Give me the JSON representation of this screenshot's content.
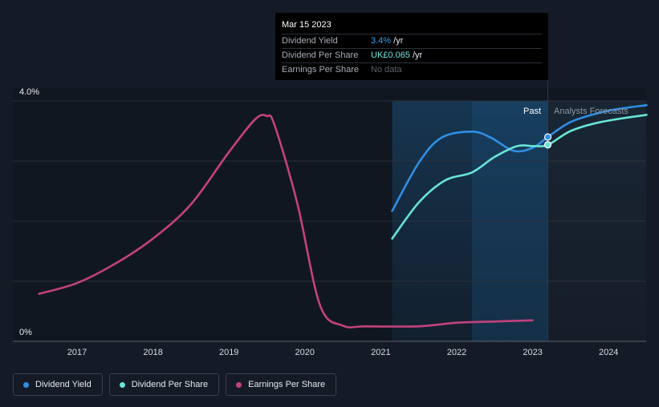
{
  "chart_data": {
    "type": "line",
    "y_axis": {
      "top_label": "4.0%",
      "bottom_label": "0%",
      "ylim": [
        0,
        4.0
      ],
      "unit": "%"
    },
    "x_axis": {
      "ticks": [
        "2017",
        "2018",
        "2019",
        "2020",
        "2021",
        "2022",
        "2023",
        "2024"
      ],
      "xlim": [
        2016.3,
        2024.5
      ]
    },
    "grid": true,
    "period_labels": {
      "past": "Past",
      "forecast": "Analysts Forecasts"
    },
    "past_end": 2023.2,
    "series": [
      {
        "name": "Dividend Yield",
        "color": "#2f8fe5",
        "points": [
          [
            2021.15,
            2.17
          ],
          [
            2021.5,
            2.97
          ],
          [
            2021.8,
            3.39
          ],
          [
            2022.2,
            3.49
          ],
          [
            2022.45,
            3.39
          ],
          [
            2022.75,
            3.17
          ],
          [
            2023.0,
            3.22
          ],
          [
            2023.2,
            3.4
          ],
          [
            2023.5,
            3.65
          ],
          [
            2023.9,
            3.81
          ],
          [
            2024.2,
            3.88
          ],
          [
            2024.5,
            3.93
          ]
        ]
      },
      {
        "name": "Dividend Per Share",
        "color": "#69e3d6",
        "points": [
          [
            2021.15,
            1.71
          ],
          [
            2021.5,
            2.31
          ],
          [
            2021.85,
            2.68
          ],
          [
            2022.2,
            2.81
          ],
          [
            2022.5,
            3.07
          ],
          [
            2022.8,
            3.25
          ],
          [
            2023.0,
            3.25
          ],
          [
            2023.2,
            3.27
          ],
          [
            2023.5,
            3.5
          ],
          [
            2023.9,
            3.65
          ],
          [
            2024.5,
            3.77
          ]
        ]
      },
      {
        "name": "Earnings Per Share",
        "color": "#c2427c",
        "points": [
          [
            2016.5,
            0.79
          ],
          [
            2017.0,
            0.97
          ],
          [
            2017.5,
            1.29
          ],
          [
            2018.0,
            1.71
          ],
          [
            2018.5,
            2.28
          ],
          [
            2019.0,
            3.15
          ],
          [
            2019.35,
            3.7
          ],
          [
            2019.5,
            3.75
          ],
          [
            2019.6,
            3.6
          ],
          [
            2019.9,
            2.3
          ],
          [
            2020.2,
            0.6
          ],
          [
            2020.5,
            0.26
          ],
          [
            2020.8,
            0.25
          ],
          [
            2021.5,
            0.25
          ],
          [
            2022.0,
            0.31
          ],
          [
            2022.5,
            0.33
          ],
          [
            2023.0,
            0.35
          ]
        ]
      }
    ],
    "highlight_markers": [
      {
        "series": "Dividend Yield",
        "x": 2023.2,
        "y": 3.4
      },
      {
        "series": "Dividend Per Share",
        "x": 2023.2,
        "y": 3.27
      }
    ]
  },
  "tooltip": {
    "date": "Mar 15 2023",
    "rows": [
      {
        "key": "Dividend Yield",
        "value": "3.4%",
        "suffix": " /yr"
      },
      {
        "key": "Dividend Per Share",
        "value": "UK£0.065",
        "suffix": " /yr"
      },
      {
        "key": "Earnings Per Share",
        "value": "No data",
        "suffix": ""
      }
    ]
  },
  "legend": [
    {
      "label": "Dividend Yield",
      "color": "#2f8fe5"
    },
    {
      "label": "Dividend Per Share",
      "color": "#69e3d6"
    },
    {
      "label": "Earnings Per Share",
      "color": "#c2427c"
    }
  ]
}
